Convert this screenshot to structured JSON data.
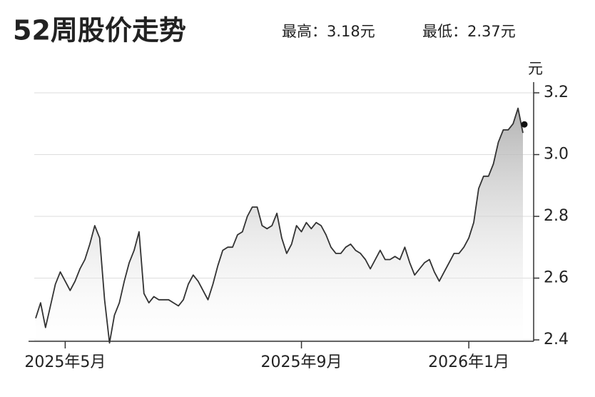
{
  "chart_data": {
    "type": "area",
    "title": "52周股价走势",
    "annotations": [
      "最高：3.18元",
      "最低：2.37元"
    ],
    "y_label": "元",
    "color": "#333333",
    "grid": true,
    "ylim": [
      2.4,
      3.2
    ],
    "yticks": [
      2.4,
      2.6,
      2.8,
      {
        "value": 3,
        "label": "3.0"
      },
      3.2
    ],
    "categories": [
      null,
      null,
      null,
      null,
      null,
      null,
      "2025年5月",
      null,
      null,
      null,
      null,
      null,
      null,
      null,
      null,
      null,
      null,
      null,
      null,
      null,
      null,
      null,
      null,
      null,
      null,
      null,
      null,
      null,
      null,
      null,
      null,
      null,
      null,
      null,
      null,
      null,
      null,
      null,
      null,
      null,
      null,
      null,
      null,
      null,
      null,
      null,
      null,
      null,
      null,
      null,
      null,
      null,
      null,
      null,
      "2025年9月",
      null,
      null,
      null,
      null,
      null,
      null,
      null,
      null,
      null,
      null,
      null,
      null,
      null,
      null,
      null,
      null,
      null,
      null,
      null,
      null,
      null,
      null,
      null,
      null,
      null,
      null,
      null,
      null,
      null,
      null,
      null,
      null,
      null,
      "2026年1月",
      null,
      null,
      null,
      null,
      null,
      null,
      null,
      null,
      null,
      null,
      null
    ],
    "values": [
      2.47,
      2.52,
      2.44,
      2.51,
      2.58,
      2.62,
      2.59,
      2.56,
      2.59,
      2.63,
      2.66,
      2.71,
      2.77,
      2.73,
      2.53,
      2.39,
      2.48,
      2.52,
      2.59,
      2.65,
      2.69,
      2.75,
      2.55,
      2.52,
      2.54,
      2.53,
      2.53,
      2.53,
      2.52,
      2.51,
      2.53,
      2.58,
      2.61,
      2.59,
      2.56,
      2.53,
      2.58,
      2.64,
      2.69,
      2.7,
      2.7,
      2.74,
      2.75,
      2.8,
      2.83,
      2.83,
      2.77,
      2.76,
      2.77,
      2.81,
      2.73,
      2.68,
      2.71,
      2.77,
      2.75,
      2.78,
      2.76,
      2.78,
      2.77,
      2.74,
      2.7,
      2.68,
      2.68,
      2.7,
      2.71,
      2.69,
      2.68,
      2.66,
      2.63,
      2.66,
      2.69,
      2.66,
      2.66,
      2.67,
      2.66,
      2.7,
      2.65,
      2.61,
      2.63,
      2.65,
      2.66,
      2.62,
      2.59,
      2.62,
      2.65,
      2.68,
      2.68,
      2.7,
      2.73,
      2.78,
      2.89,
      2.93,
      2.93,
      2.97,
      3.04,
      3.08,
      3.08,
      3.1,
      3.15,
      3.07
    ]
  }
}
